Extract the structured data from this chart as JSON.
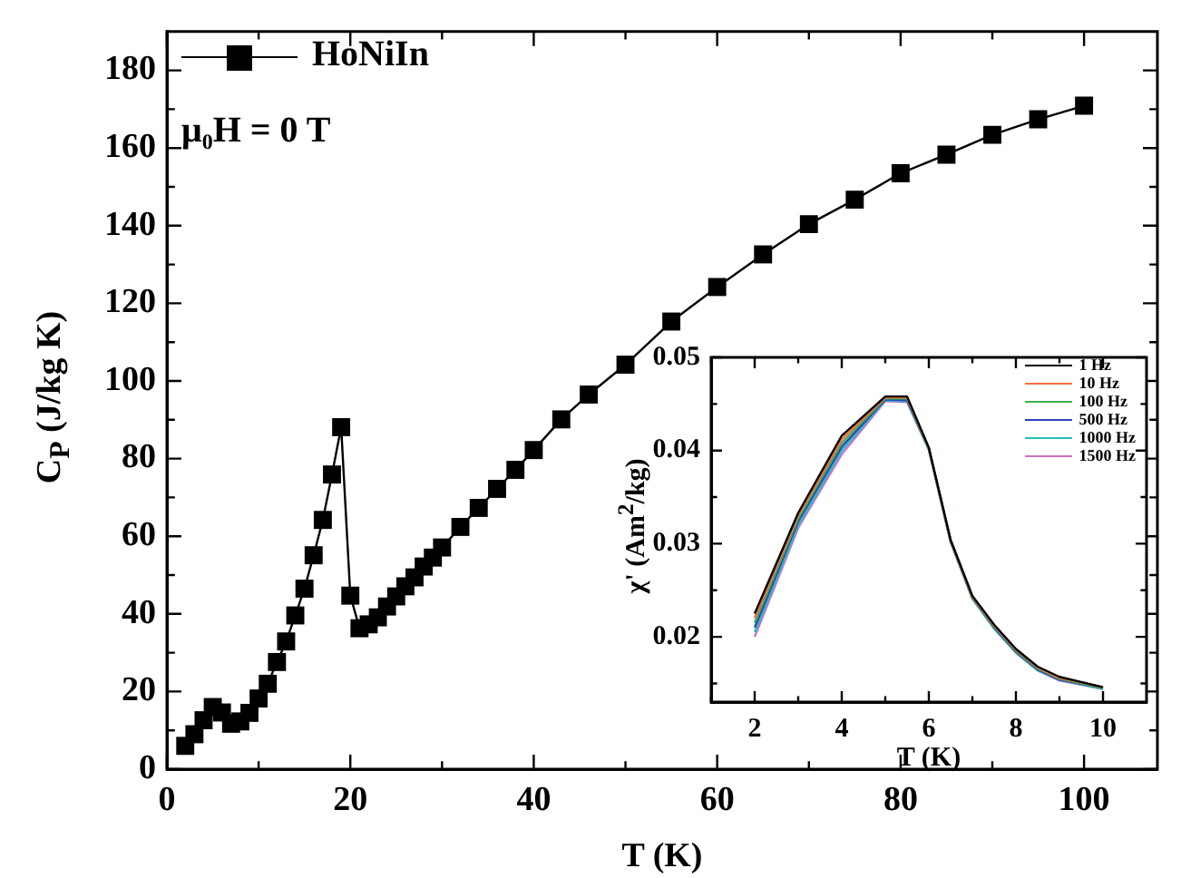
{
  "chart_data": [
    {
      "type": "line",
      "xlabel": "T (K)",
      "ylabel": "C$_{P}$ (J/kg K)",
      "annotations": [
        "μ₀H = 0 T"
      ],
      "x": [
        2,
        3,
        4,
        5,
        6,
        7,
        8,
        9,
        10,
        11,
        12,
        13,
        14,
        15,
        16,
        17,
        18,
        19,
        20,
        21,
        22,
        23,
        24,
        25,
        26,
        27,
        28,
        29,
        30,
        32,
        34,
        36,
        38,
        40,
        43,
        46,
        50,
        55,
        60,
        65,
        70,
        75,
        80,
        85,
        90,
        95,
        100
      ],
      "series": [
        {
          "name": "HoNiIn",
          "color": "#000000",
          "values": [
            6,
            9,
            12.6,
            16,
            14.6,
            11.7,
            12.3,
            14.5,
            18.2,
            22,
            27.6,
            32.9,
            39.6,
            46.5,
            55.1,
            64.2,
            75.9,
            88.1,
            44.7,
            36.3,
            37.3,
            39.1,
            41.9,
            44.5,
            47.1,
            49.4,
            52.2,
            54.5,
            57.1,
            62.4,
            67.3,
            72.2,
            77.1,
            82.2,
            90.1,
            96.5,
            104.2,
            115.3,
            124.2,
            132.6,
            140.4,
            146.7,
            153.5,
            158.3,
            163.4,
            167.4,
            170.9
          ]
        }
      ],
      "xlim": [
        0,
        108
      ],
      "xticks": [
        0,
        {
          "value": 10,
          "label": null
        },
        20,
        {
          "value": 30,
          "label": null
        },
        40,
        {
          "value": 50,
          "label": null
        },
        60,
        {
          "value": 70,
          "label": null
        },
        80,
        {
          "value": 90,
          "label": null
        },
        100
      ],
      "ylim": [
        0,
        190
      ],
      "yticks": [
        0,
        {
          "value": 10,
          "label": null
        },
        20,
        {
          "value": 30,
          "label": null
        },
        40,
        {
          "value": 50,
          "label": null
        },
        60,
        {
          "value": 70,
          "label": null
        },
        80,
        {
          "value": 90,
          "label": null
        },
        100,
        {
          "value": 110,
          "label": null
        },
        120,
        {
          "value": 130,
          "label": null
        },
        140,
        {
          "value": 150,
          "label": null
        },
        160,
        {
          "value": 170,
          "label": null
        },
        180
      ],
      "grid": false,
      "legend": "top left",
      "marker": "square",
      "line_style": "solid"
    },
    {
      "type": "line",
      "xlabel": "T (K)",
      "ylabel": "χ' (Am$^{2}$/kg)",
      "x": [
        2,
        3,
        4,
        5,
        5.5,
        6,
        6.5,
        7,
        7.5,
        8,
        8.5,
        9,
        10
      ],
      "series": [
        {
          "name": "1 Hz",
          "color": "#000000",
          "values": [
            0.0225,
            0.0333,
            0.0416,
            0.0458,
            0.0458,
            0.0403,
            0.0304,
            0.0244,
            0.0213,
            0.0187,
            0.0168,
            0.0157,
            0.0146
          ]
        },
        {
          "name": "10 Hz",
          "color": "#ff6a3d",
          "values": [
            0.022,
            0.033,
            0.0412,
            0.0457,
            0.0457,
            0.0403,
            0.0304,
            0.0243,
            0.0212,
            0.0186,
            0.0167,
            0.0156,
            0.0146
          ]
        },
        {
          "name": "100 Hz",
          "color": "#3cb04b",
          "values": [
            0.0215,
            0.0327,
            0.0408,
            0.0456,
            0.0456,
            0.0402,
            0.0303,
            0.0242,
            0.0211,
            0.0185,
            0.0166,
            0.0155,
            0.0145
          ]
        },
        {
          "name": "500 Hz",
          "color": "#3040c0",
          "values": [
            0.021,
            0.0324,
            0.0404,
            0.0455,
            0.0454,
            0.0402,
            0.0303,
            0.0242,
            0.021,
            0.0184,
            0.0165,
            0.0154,
            0.0145
          ]
        },
        {
          "name": "1000 Hz",
          "color": "#20c0c0",
          "values": [
            0.0205,
            0.032,
            0.04,
            0.0454,
            0.0453,
            0.0401,
            0.0302,
            0.0241,
            0.0209,
            0.0183,
            0.0164,
            0.0154,
            0.0144
          ]
        },
        {
          "name": "1500 Hz",
          "color": "#d070c0",
          "values": [
            0.02,
            0.0317,
            0.0396,
            0.0453,
            0.0452,
            0.0401,
            0.0302,
            0.0241,
            0.0209,
            0.0183,
            0.0164,
            0.0153,
            0.0144
          ]
        }
      ],
      "xlim": [
        1,
        11
      ],
      "xticks": [
        {
          "value": 1,
          "label": null
        },
        2,
        {
          "value": 3,
          "label": null
        },
        4,
        {
          "value": 5,
          "label": null
        },
        6,
        {
          "value": 7,
          "label": null
        },
        8,
        {
          "value": 9,
          "label": null
        },
        10
      ],
      "ylim": [
        0.013,
        0.05
      ],
      "yticks": [
        {
          "value": 0.015,
          "label": null
        },
        0.02,
        {
          "value": 0.025,
          "label": null
        },
        0.03,
        {
          "value": 0.035,
          "label": null
        },
        0.04,
        {
          "value": 0.045,
          "label": null
        },
        0.05
      ],
      "grid": false,
      "legend": "top right",
      "marker": "none",
      "line_style": "solid"
    }
  ]
}
